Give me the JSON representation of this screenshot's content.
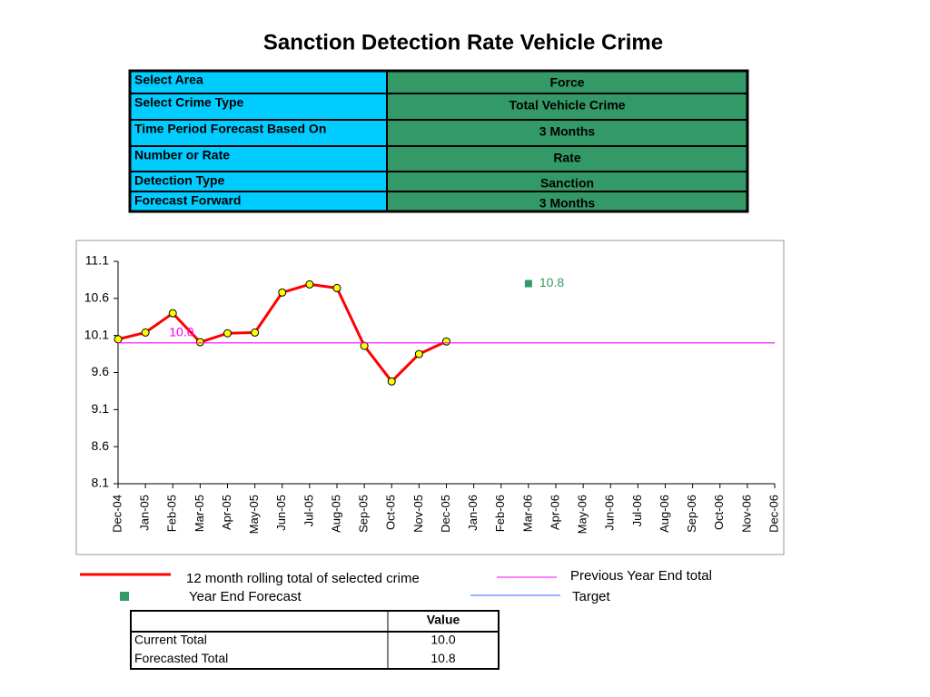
{
  "title": "Sanction Detection Rate Vehicle Crime",
  "settings": {
    "rows": [
      [
        "Select Area",
        "Force"
      ],
      [
        "Select Crime Type",
        "Total Vehicle Crime"
      ],
      [
        "Time Period Forecast Based On",
        "3 Months"
      ],
      [
        "Number or Rate",
        "Rate"
      ],
      [
        "Detection Type",
        "Sanction"
      ],
      [
        "Forecast Forward",
        "3 Months"
      ]
    ]
  },
  "chart_data": {
    "type": "line",
    "categories": [
      "Dec-04",
      "Jan-05",
      "Feb-05",
      "Mar-05",
      "Apr-05",
      "May-05",
      "Jun-05",
      "Jul-05",
      "Aug-05",
      "Sep-05",
      "Oct-05",
      "Nov-05",
      "Dec-05",
      "Jan-06",
      "Feb-06",
      "Mar-06",
      "Apr-06",
      "May-06",
      "Jun-06",
      "Jul-06",
      "Aug-06",
      "Sep-06",
      "Oct-06",
      "Nov-06",
      "Dec-06"
    ],
    "ylim": [
      8.1,
      11.1
    ],
    "yticks": [
      8.1,
      8.6,
      9.1,
      9.6,
      10.1,
      10.6,
      11.1
    ],
    "series": [
      {
        "name": "12 month rolling total of selected crime",
        "color": "#ff0000",
        "style": "line",
        "marker": "circle",
        "marker_color": "#ffff00",
        "values": [
          10.05,
          10.14,
          10.4,
          10.01,
          10.13,
          10.14,
          10.68,
          10.79,
          10.74,
          9.96,
          9.48,
          9.85,
          10.02,
          null,
          null,
          null,
          null,
          null,
          null,
          null,
          null,
          null,
          null,
          null,
          null
        ]
      },
      {
        "name": "Previous Year End total",
        "color": "#ff00ff",
        "style": "line",
        "values": [
          10.0,
          10.0,
          10.0,
          10.0,
          10.0,
          10.0,
          10.0,
          10.0,
          10.0,
          10.0,
          10.0,
          10.0,
          10.0,
          10.0,
          10.0,
          10.0,
          10.0,
          10.0,
          10.0,
          10.0,
          10.0,
          10.0,
          10.0,
          10.0,
          10.0
        ],
        "value_labels": [
          null,
          null,
          "10.0",
          null,
          null,
          null,
          null,
          null,
          null,
          null,
          null,
          null,
          null,
          null,
          null,
          null,
          null,
          null,
          null,
          null,
          null,
          null,
          null,
          null,
          null
        ]
      },
      {
        "name": "Year End Forecast",
        "color": "#339966",
        "style": "marker",
        "marker": "square",
        "data_labels": true,
        "values": [
          null,
          null,
          null,
          null,
          null,
          null,
          null,
          null,
          null,
          null,
          null,
          null,
          null,
          null,
          null,
          10.8,
          null,
          null,
          null,
          null,
          null,
          null,
          null,
          null,
          null
        ]
      },
      {
        "name": "Target",
        "color": "#3366ff",
        "style": "line",
        "values": [
          null,
          null,
          null,
          null,
          null,
          null,
          null,
          null,
          null,
          null,
          null,
          null,
          null,
          null,
          null,
          null,
          null,
          null,
          null,
          null,
          null,
          null,
          null,
          null,
          null
        ]
      }
    ]
  },
  "summary": {
    "columns": [
      "Value"
    ],
    "rows": [
      [
        "Current Total",
        "10.0"
      ],
      [
        "Forecasted Total",
        "10.8"
      ]
    ]
  }
}
